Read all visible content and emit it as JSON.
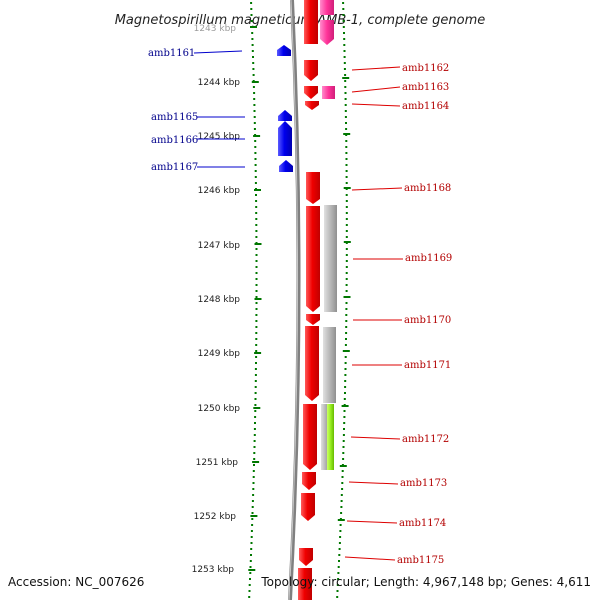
{
  "title": "Magnetospirillum magneticum AMB-1, complete genome",
  "footer": {
    "accession": "Accession: NC_007626",
    "topology": "Topology: circular; Length: 4,967,148 bp; Genes: 4,611"
  },
  "ruler": {
    "ticks": [
      "1243 kbp",
      "1244 kbp",
      "1245 kbp",
      "1246 kbp",
      "1247 kbp",
      "1248 kbp",
      "1249 kbp",
      "1250 kbp",
      "1251 kbp",
      "1252 kbp",
      "1253 kbp"
    ]
  },
  "genes_left": [
    "amb1161",
    "amb1165",
    "amb1166",
    "amb1167"
  ],
  "genes_right": [
    "amb1162",
    "amb1163",
    "amb1164",
    "amb1168",
    "amb1169",
    "amb1170",
    "amb1171",
    "amb1172",
    "amb1173",
    "amb1174",
    "amb1175"
  ],
  "colors": {
    "minus_strand": "#0000ee",
    "plus_strand": "#ee0000",
    "pink": "#ff3399",
    "gray_feature": "#b8b8b8",
    "green_feature": "#99ee22",
    "ruler_dots": "#007700",
    "label_left": "#00008b",
    "label_right": "#b30000"
  }
}
